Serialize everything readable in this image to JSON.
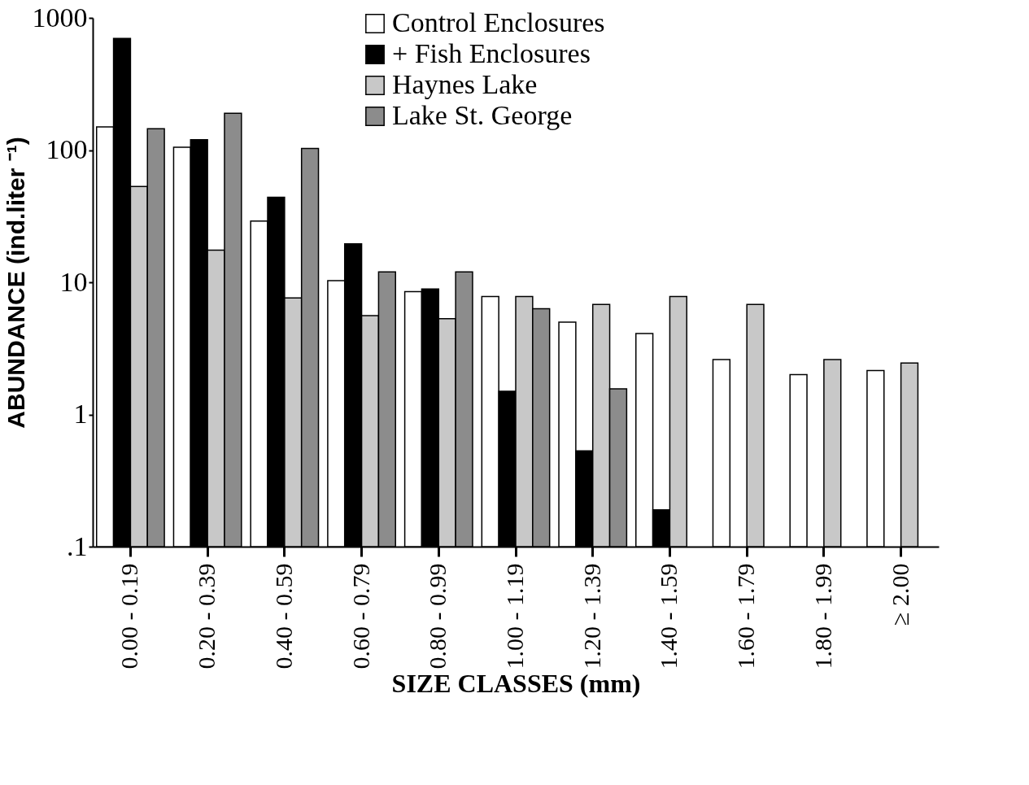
{
  "chart_data": {
    "type": "bar",
    "xlabel": "SIZE CLASSES (mm)",
    "ylabel": "ABUNDANCE (ind.liter ⁻¹)",
    "categories": [
      "0.00 - 0.19",
      "0.20 - 0.39",
      "0.40 - 0.59",
      "0.60 - 0.79",
      "0.80 - 0.99",
      "1.00 - 1.19",
      "1.20 - 1.39",
      "1.40 - 1.59",
      "1.60 - 1.79",
      "1.80 - 1.99",
      "≥ 2.00"
    ],
    "series": [
      {
        "name": "Control Enclosures",
        "color": "#ffffff",
        "values": [
          150,
          105,
          29,
          10.3,
          8.5,
          7.8,
          5.0,
          4.1,
          2.6,
          2.0,
          2.15
        ]
      },
      {
        "name": "+ Fish Enclosures",
        "color": "#000000",
        "values": [
          700,
          120,
          44,
          19.5,
          8.9,
          1.5,
          0.53,
          0.19,
          null,
          null,
          null
        ]
      },
      {
        "name": "Haynes Lake",
        "color": "#c8c8c8",
        "values": [
          53,
          17.5,
          7.6,
          5.6,
          5.3,
          7.8,
          6.8,
          7.8,
          6.8,
          2.6,
          2.45
        ]
      },
      {
        "name": "Lake St. George",
        "color": "#8c8c8c",
        "values": [
          145,
          190,
          103,
          12,
          12,
          6.3,
          1.56,
          null,
          null,
          null,
          null
        ]
      }
    ],
    "log": true,
    "ylim": [
      0.1,
      1000
    ],
    "yticks": [
      {
        "value": 0.1,
        "label": ".1"
      },
      1,
      10,
      100,
      1000
    ],
    "grid": false,
    "legend": "top right"
  }
}
